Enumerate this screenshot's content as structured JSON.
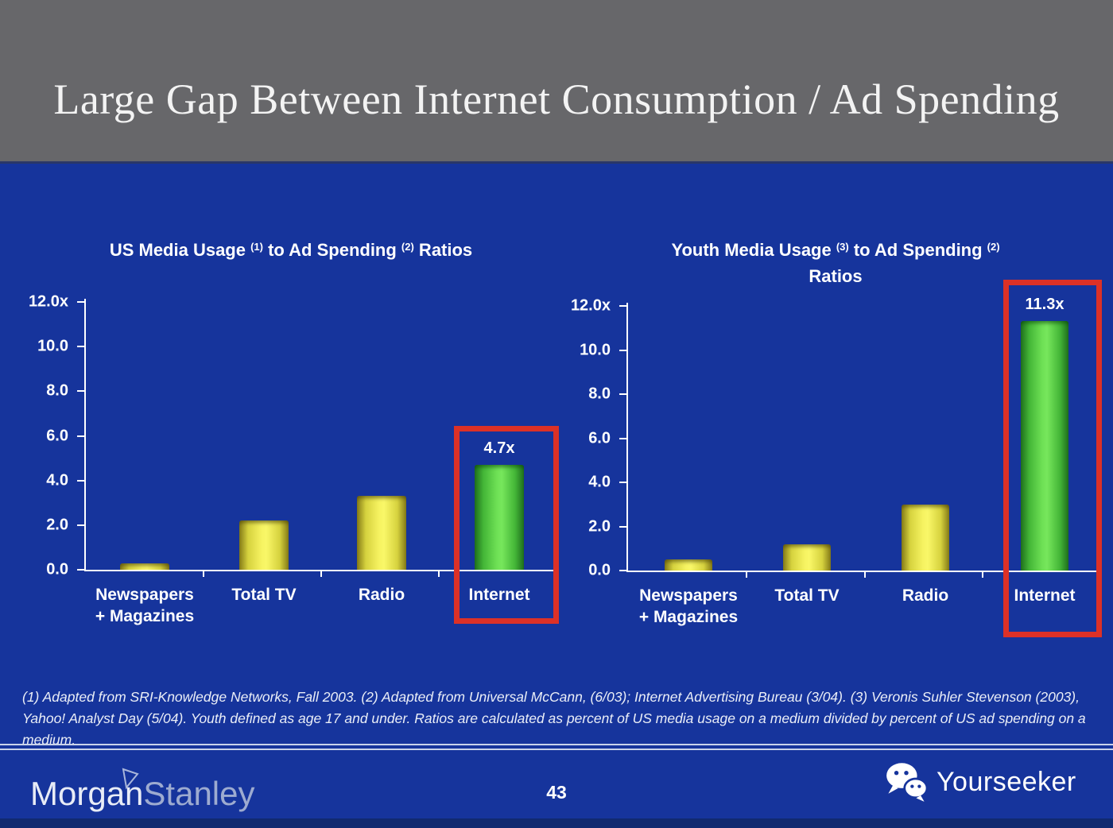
{
  "header": {
    "title": "Large Gap Between Internet Consumption / Ad Spending"
  },
  "colors": {
    "background_blue": "#16349C",
    "header_gray": "#67676A",
    "bar_yellow": "#EDE94F",
    "bar_green": "#5FD04A",
    "highlight_red": "#DC3127",
    "axis_white": "#FFFFFF"
  },
  "chart_data": [
    {
      "type": "bar",
      "title": "US Media Usage (1) to Ad Spending (2) Ratios",
      "title_parts": [
        {
          "text": "US Media Usage "
        },
        {
          "sup": "(1)"
        },
        {
          "text": " to Ad Spending "
        },
        {
          "sup": "(2)"
        },
        {
          "text": " Ratios"
        }
      ],
      "categories": [
        "Newspapers\n+ Magazines",
        "Total TV",
        "Radio",
        "Internet"
      ],
      "values": [
        0.3,
        2.2,
        3.3,
        4.7
      ],
      "bar_colors": [
        "yellow",
        "yellow",
        "yellow",
        "green"
      ],
      "highlight_index": 3,
      "highlight_label": "4.7x",
      "ylim": [
        0,
        12
      ],
      "yticks": [
        {
          "value": 12,
          "label": "12.0x"
        },
        {
          "value": 10,
          "label": "10.0"
        },
        {
          "value": 8,
          "label": "8.0"
        },
        {
          "value": 6,
          "label": "6.0"
        },
        {
          "value": 4,
          "label": "4.0"
        },
        {
          "value": 2,
          "label": "2.0"
        },
        {
          "value": 0,
          "label": "0.0"
        }
      ],
      "grid": false,
      "legend": "none"
    },
    {
      "type": "bar",
      "title": "Youth Media Usage (3) to Ad Spending (2) Ratios",
      "title_parts": [
        {
          "text": "Youth Media Usage "
        },
        {
          "sup": "(3)"
        },
        {
          "text": " to Ad Spending "
        },
        {
          "sup": "(2)"
        },
        {
          "br": true
        },
        {
          "text": "Ratios"
        }
      ],
      "categories": [
        "Newspapers\n+ Magazines",
        "Total TV",
        "Radio",
        "Internet"
      ],
      "values": [
        0.5,
        1.2,
        3.0,
        11.3
      ],
      "bar_colors": [
        "yellow",
        "yellow",
        "yellow",
        "green"
      ],
      "highlight_index": 3,
      "highlight_label": "11.3x",
      "ylim": [
        0,
        12
      ],
      "yticks": [
        {
          "value": 12,
          "label": "12.0x"
        },
        {
          "value": 10,
          "label": "10.0"
        },
        {
          "value": 8,
          "label": "8.0"
        },
        {
          "value": 6,
          "label": "6.0"
        },
        {
          "value": 4,
          "label": "4.0"
        },
        {
          "value": 2,
          "label": "2.0"
        },
        {
          "value": 0,
          "label": "0.0"
        }
      ],
      "grid": false,
      "legend": "none"
    }
  ],
  "footnote": {
    "text": "(1) Adapted from SRI-Knowledge Networks, Fall 2003.  (2) Adapted from Universal McCann, (6/03); Internet Advertising Bureau (3/04). (3) Veronis Suhler Stevenson (2003), Yahoo! Analyst Day (5/04).  Youth defined as age 17 and under.  Ratios are calculated as percent of US media usage on a medium divided by percent of US ad spending on a medium."
  },
  "footer": {
    "brand": {
      "part1": "Morgan",
      "part2": "Stanley"
    },
    "page_number": "43",
    "partner": "Yourseeker"
  }
}
